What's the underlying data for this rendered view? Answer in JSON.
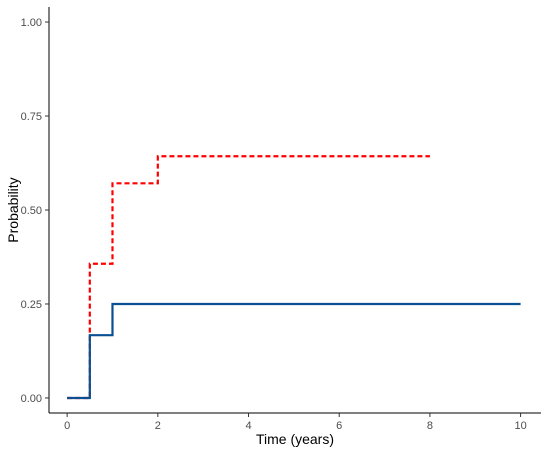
{
  "chart_data": {
    "type": "line",
    "step": true,
    "title": "",
    "xlabel": "Time (years)",
    "ylabel": "Probability",
    "xlim": [
      -0.4,
      10.45
    ],
    "ylim": [
      -0.04,
      1.04
    ],
    "xticks": [
      0,
      2,
      4,
      6,
      8,
      10
    ],
    "xtick_labels": [
      "0",
      "2",
      "4",
      "6",
      "8",
      "10"
    ],
    "yticks": [
      0,
      0.25,
      0.5,
      0.75,
      1
    ],
    "ytick_labels": [
      "0.00",
      "0.25",
      "0.50",
      "0.75",
      "1.00"
    ],
    "grid": false,
    "legend": "none",
    "series": [
      {
        "style": "dashed",
        "color": "#ff0000",
        "x": [
          0,
          0.5,
          1,
          2,
          8
        ],
        "y": [
          0,
          0.357,
          0.571,
          0.643,
          0.643
        ]
      },
      {
        "style": "solid",
        "color": "#0a4f91",
        "x": [
          0,
          0.5,
          1,
          10
        ],
        "y": [
          0,
          0.167,
          0.25,
          0.25
        ]
      }
    ]
  }
}
